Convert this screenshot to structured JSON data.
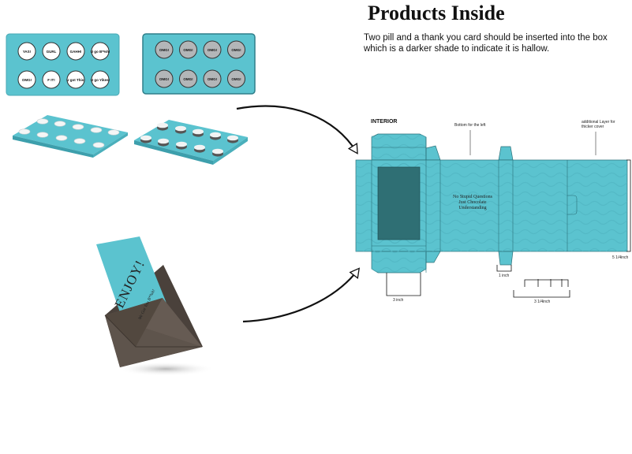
{
  "header": {
    "title": "Products Inside",
    "description": "Two pill and a thank you card should be inserted into the box which is a darker shade to indicate it is hallow."
  },
  "colors": {
    "teal": "#5bc3cf",
    "teal_dark": "#3aa5b3",
    "window_dark": "#2f6f74",
    "envelope": "#5a5049",
    "pill_gray": "#b3b6b8"
  },
  "pill_pack_front": {
    "pills": [
      "YAS!",
      "GURL",
      "GAHH!",
      "U go B*%h!",
      "OMG!",
      "F IT!",
      "U got This!",
      "U go Yikes!"
    ]
  },
  "pill_pack_gray": {
    "pills": [
      "OMG!",
      "OMG!",
      "OMG!",
      "OMG!",
      "OMG!",
      "OMG!",
      "OMG!",
      "OMG!"
    ]
  },
  "card": {
    "headline": "ENJOY!",
    "subline": "We Got You B*%h!"
  },
  "dieline": {
    "interior_label": "INTERIOR",
    "bottom_label": "Bottom for the left",
    "layer_label": "additional Layer for thicker cover",
    "box_text": [
      "No Stupid Questions",
      "Just Chocolate",
      "Understanding"
    ],
    "dim_height": "5 1/4inch",
    "dim_width": "3 inch",
    "dim_small": "1 inch",
    "dim_length": "3 1/4inch"
  }
}
